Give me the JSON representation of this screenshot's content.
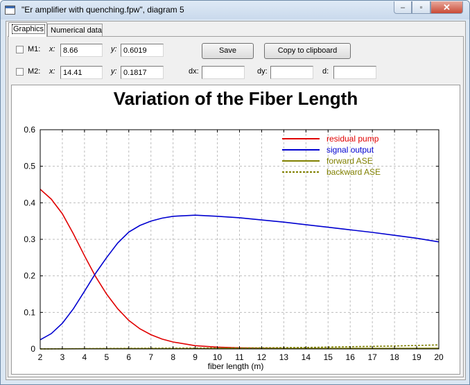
{
  "window": {
    "title": "\"Er amplifier with quenching.fpw\", diagram 5",
    "controls": {
      "minimize": "–",
      "maximize": "▫",
      "close": "✕"
    }
  },
  "tabs": [
    {
      "label": "Graphics",
      "active": true
    },
    {
      "label": "Numerical data",
      "active": false
    }
  ],
  "markers": {
    "m1": {
      "label": "M1:",
      "checked": false,
      "x_label": "x:",
      "x_value": "8.66",
      "y_label": "y:",
      "y_value": "0.6019"
    },
    "m2": {
      "label": "M2:",
      "checked": false,
      "x_label": "x:",
      "x_value": "14.41",
      "y_label": "y:",
      "y_value": "0.1817"
    }
  },
  "deltas": {
    "dx_label": "dx:",
    "dx_value": "",
    "dy_label": "dy:",
    "dy_value": "",
    "d_label": "d:",
    "d_value": ""
  },
  "buttons": {
    "save": "Save",
    "copy": "Copy to clipboard"
  },
  "colors": {
    "residual_pump": "#e00000",
    "signal_output": "#0000d0",
    "forward_ase": "#808000",
    "backward_ase": "#808000"
  },
  "chart_data": {
    "type": "line",
    "title": "Variation of the Fiber Length",
    "xlabel": "fiber length (m)",
    "ylabel": "",
    "xlim": [
      2,
      20
    ],
    "ylim": [
      0,
      0.6
    ],
    "x_ticks": [
      "2",
      "3",
      "4",
      "5",
      "6",
      "7",
      "8",
      "9",
      "10",
      "11",
      "12",
      "13",
      "14",
      "15",
      "16",
      "17",
      "18",
      "19",
      "20"
    ],
    "y_ticks": [
      "0",
      "0.1",
      "0.2",
      "0.3",
      "0.4",
      "0.5",
      "0.6"
    ],
    "grid": true,
    "legend_position": "top-right",
    "series": [
      {
        "name": "residual pump",
        "style": "solid",
        "x": [
          2,
          2.5,
          3,
          3.5,
          4,
          4.5,
          5,
          5.5,
          6,
          6.5,
          7,
          7.5,
          8,
          9,
          10,
          11,
          12,
          14,
          16,
          18,
          20
        ],
        "y": [
          0.437,
          0.41,
          0.37,
          0.315,
          0.255,
          0.198,
          0.15,
          0.11,
          0.078,
          0.055,
          0.039,
          0.027,
          0.019,
          0.009,
          0.005,
          0.003,
          0.002,
          0.001,
          0.001,
          0.001,
          0.001
        ]
      },
      {
        "name": "signal output",
        "style": "solid",
        "x": [
          2,
          2.5,
          3,
          3.5,
          4,
          4.5,
          5,
          5.5,
          6,
          6.5,
          7,
          7.5,
          8,
          9,
          10,
          11,
          12,
          13,
          14,
          15,
          16,
          17,
          18,
          19,
          20
        ],
        "y": [
          0.025,
          0.042,
          0.07,
          0.11,
          0.158,
          0.207,
          0.25,
          0.29,
          0.32,
          0.338,
          0.35,
          0.358,
          0.363,
          0.366,
          0.363,
          0.359,
          0.353,
          0.347,
          0.34,
          0.333,
          0.326,
          0.319,
          0.311,
          0.303,
          0.293
        ]
      },
      {
        "name": "forward ASE",
        "style": "solid",
        "x": [
          2,
          4,
          6,
          8,
          10,
          12,
          14,
          16,
          18,
          20
        ],
        "y": [
          0.0,
          0.0005,
          0.001,
          0.001,
          0.0012,
          0.0013,
          0.0014,
          0.0015,
          0.0016,
          0.0017
        ]
      },
      {
        "name": "backward ASE",
        "style": "dashed",
        "x": [
          2,
          4,
          6,
          8,
          10,
          12,
          14,
          16,
          18,
          20
        ],
        "y": [
          0.0,
          0.0007,
          0.0015,
          0.002,
          0.0025,
          0.003,
          0.004,
          0.006,
          0.008,
          0.011
        ]
      }
    ]
  }
}
